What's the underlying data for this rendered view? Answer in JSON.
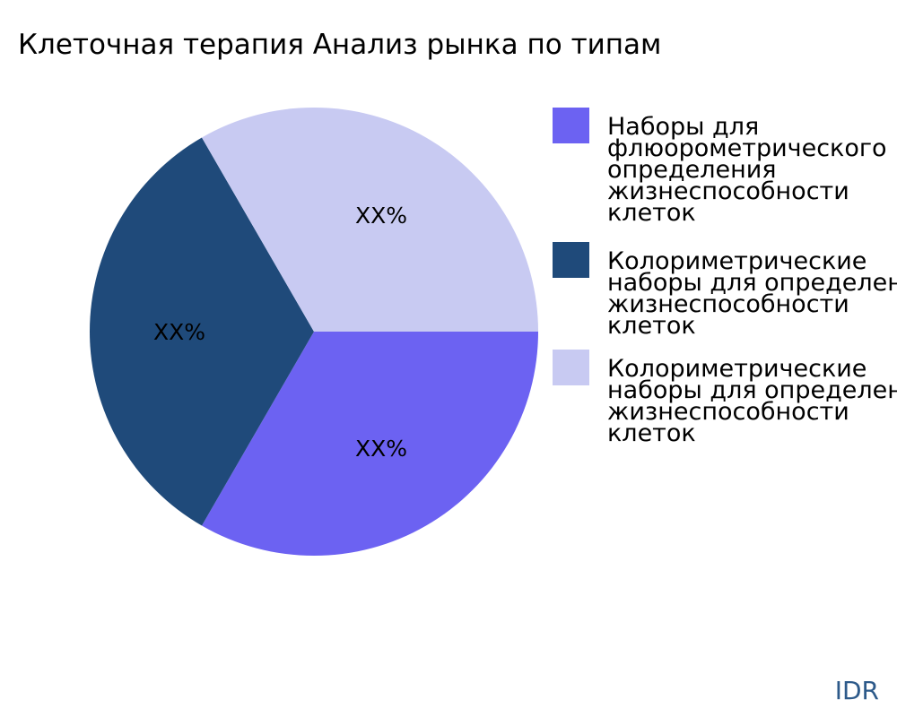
{
  "chart_data": {
    "type": "pie",
    "title": "Клеточная терапия Анализ рынка по типам",
    "legend_placement": "right",
    "slices": [
      {
        "label_lines": [
          "Наборы для",
          "флюорометрического",
          "определения",
          "жизнеспособности",
          "клеток"
        ],
        "value": 33.33,
        "text": "XX%",
        "color": "#6c62f2"
      },
      {
        "label_lines": [
          "Колориметрические",
          "наборы для определения",
          "жизнеспособности",
          "клеток"
        ],
        "value": 33.33,
        "text": "XX%",
        "color": "#1f4a7a"
      },
      {
        "label_lines": [
          "Колориметрические",
          "наборы для определения",
          "жизнеспособности",
          "клеток"
        ],
        "value": 33.33,
        "text": "XX%",
        "color": "#c8caf2"
      }
    ]
  },
  "watermark": "IDR",
  "watermark_color": "#2d5a8a"
}
